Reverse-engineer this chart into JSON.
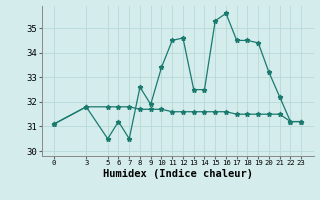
{
  "xlabel": "Humidex (Indice chaleur)",
  "x": [
    0,
    3,
    5,
    6,
    7,
    8,
    9,
    10,
    11,
    12,
    13,
    14,
    15,
    16,
    17,
    18,
    19,
    20,
    21,
    22,
    23
  ],
  "line1_y": [
    31.1,
    31.8,
    30.5,
    31.2,
    30.5,
    32.6,
    31.9,
    33.4,
    34.5,
    34.6,
    32.5,
    32.5,
    35.3,
    35.6,
    34.5,
    34.5,
    34.4,
    33.2,
    32.2,
    31.2,
    31.2
  ],
  "line2_y": [
    31.1,
    31.8,
    31.8,
    31.8,
    31.8,
    31.7,
    31.7,
    31.7,
    31.6,
    31.6,
    31.6,
    31.6,
    31.6,
    31.6,
    31.5,
    31.5,
    31.5,
    31.5,
    31.5,
    31.2,
    31.2
  ],
  "line_color": "#1a7a6e",
  "bg_color": "#d4ecec",
  "grid_color": "#b8d8d8",
  "ylim": [
    29.8,
    35.9
  ],
  "yticks": [
    30,
    31,
    32,
    33,
    34,
    35
  ],
  "xticks": [
    0,
    3,
    5,
    6,
    7,
    8,
    9,
    10,
    11,
    12,
    13,
    14,
    15,
    16,
    17,
    18,
    19,
    20,
    21,
    22,
    23
  ],
  "xlabel_fontsize": 7.5,
  "tick_fontsize": 6.5,
  "marker": "*",
  "marker_size": 3.5,
  "linewidth": 0.9
}
